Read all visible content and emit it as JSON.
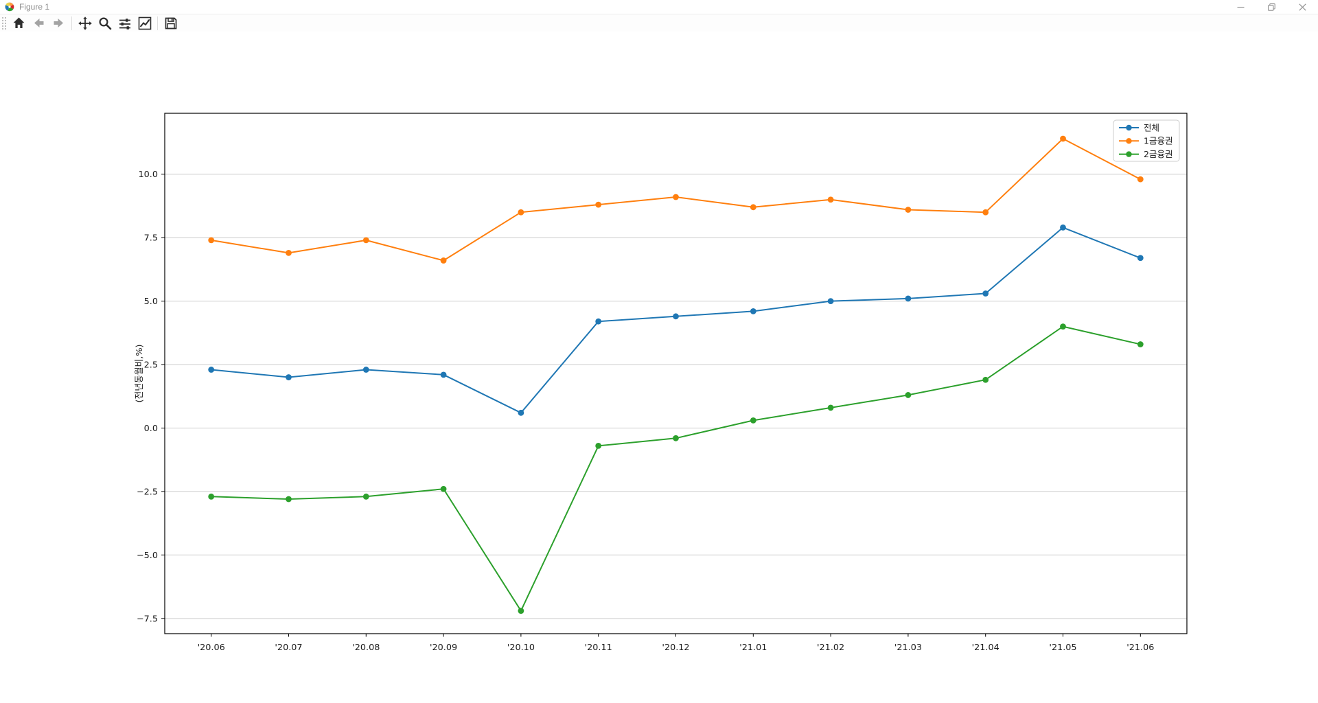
{
  "titlebar": {
    "title": "Figure 1",
    "app_icon": "matplotlib-logo-icon",
    "controls": [
      {
        "name": "minimize-button",
        "icon": "minimize-icon"
      },
      {
        "name": "restore-button",
        "icon": "restore-icon"
      },
      {
        "name": "close-button",
        "icon": "close-icon"
      }
    ]
  },
  "toolbar": {
    "handle_icon": "toolbar-grip-icon",
    "buttons": [
      {
        "id": "home",
        "icon": "home-icon",
        "disabled": false
      },
      {
        "id": "back",
        "icon": "back-arrow-icon",
        "disabled": true
      },
      {
        "id": "forward",
        "icon": "forward-arrow-icon",
        "disabled": true
      },
      {
        "id": "pan",
        "icon": "pan-arrows-icon",
        "disabled": false
      },
      {
        "id": "zoom",
        "icon": "zoom-magnifier-icon",
        "disabled": false
      },
      {
        "id": "configure-subplots",
        "icon": "sliders-icon",
        "disabled": false
      },
      {
        "id": "edit-parameters",
        "icon": "line-chart-icon",
        "disabled": false
      },
      {
        "id": "save",
        "icon": "floppy-disk-icon",
        "disabled": false
      }
    ]
  },
  "chart_data": {
    "type": "line",
    "categories": [
      "'20.06",
      "'20.07",
      "'20.08",
      "'20.09",
      "'20.10",
      "'20.11",
      "'20.12",
      "'21.01",
      "'21.02",
      "'21.03",
      "'21.04",
      "'21.05",
      "'21.06"
    ],
    "series": [
      {
        "name": "전체",
        "color": "#1f77b4",
        "values": [
          2.3,
          2.0,
          2.3,
          2.1,
          0.6,
          4.2,
          4.4,
          4.6,
          5.0,
          5.1,
          5.3,
          7.9,
          6.7
        ]
      },
      {
        "name": "1금융권",
        "color": "#ff7f0e",
        "values": [
          7.4,
          6.9,
          7.4,
          6.6,
          8.5,
          8.8,
          9.1,
          8.7,
          9.0,
          8.6,
          8.5,
          11.4,
          9.8
        ]
      },
      {
        "name": "2금융권",
        "color": "#2ca02c",
        "values": [
          -2.7,
          -2.8,
          -2.7,
          -2.4,
          -7.2,
          -0.7,
          -0.4,
          0.3,
          0.8,
          1.3,
          1.9,
          4.0,
          3.3
        ]
      }
    ],
    "title": "",
    "xlabel": "",
    "ylabel": "(전년동월비,%)",
    "yticks": [
      10.0,
      7.5,
      5.0,
      2.5,
      0.0,
      -2.5,
      -5.0,
      -7.5
    ],
    "xlim": [
      -0.6,
      12.6
    ],
    "ylim": [
      -8.1,
      12.4
    ],
    "grid": true,
    "legend_position": "upper right",
    "colors": {
      "grid": "#cccccc",
      "spine": "#000000",
      "text": "#1a1a1a",
      "legend_border": "#cccccc",
      "legend_bg": "#ffffff"
    }
  }
}
